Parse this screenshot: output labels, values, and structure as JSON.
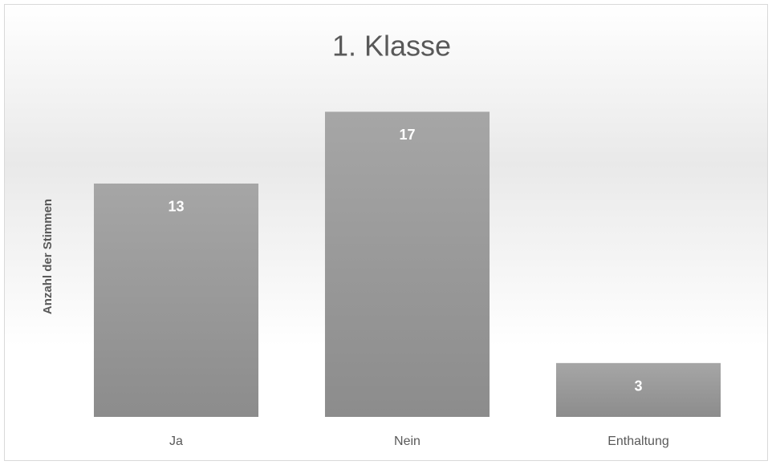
{
  "chart_data": {
    "type": "bar",
    "title": "1. Klasse",
    "ylabel": "Anzahl der Stimmen",
    "categories": [
      "Ja",
      "Nein",
      "Enthaltung"
    ],
    "values": [
      13,
      17,
      3
    ],
    "color": "#9a9a9a",
    "ylim": [
      0,
      18
    ],
    "grid": false
  }
}
